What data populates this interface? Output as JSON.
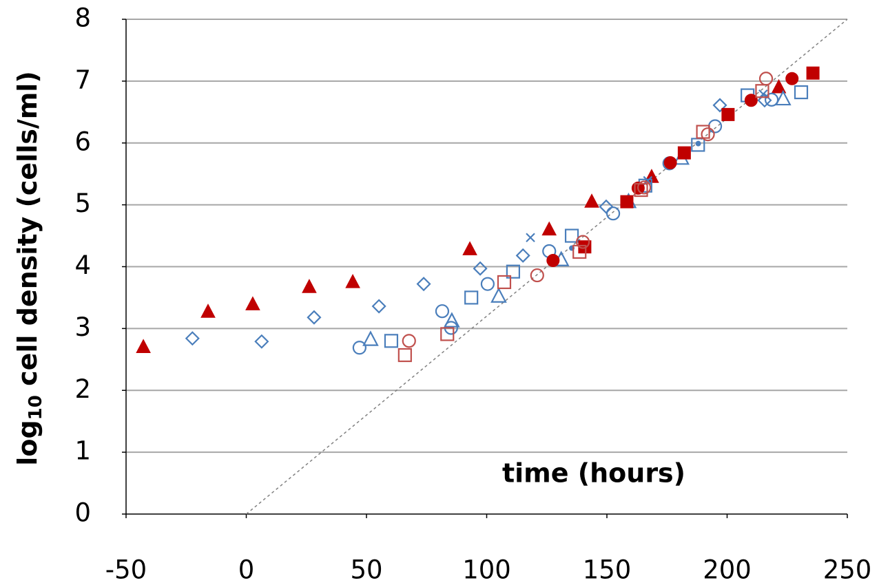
{
  "chart_data": {
    "type": "scatter",
    "x_label": "time (hours)",
    "y_label": [
      "log",
      "10",
      " cell density (cells/ml)"
    ],
    "xlim": [
      -50,
      250
    ],
    "xticks": [
      -50,
      0,
      50,
      100,
      150,
      200,
      250
    ],
    "ylim": [
      0,
      8
    ],
    "yticks": [
      0,
      1,
      2,
      3,
      4,
      5,
      6,
      7,
      8
    ],
    "grid": true,
    "reference_line": {
      "x": [
        0,
        250
      ],
      "values": [
        0,
        8
      ],
      "color": "#808080"
    },
    "series": [
      {
        "marker": "triangle",
        "filled": true,
        "color": "#c00000",
        "x": [
          -42.8,
          -15.9,
          2.7,
          26.2,
          44.3,
          93,
          126,
          143.7,
          168.6,
          221.5
        ],
        "values": [
          2.71,
          3.28,
          3.4,
          3.68,
          3.76,
          4.29,
          4.61,
          5.06,
          5.46,
          6.91
        ]
      },
      {
        "marker": "diamond",
        "filled": false,
        "color": "#4a7ebb",
        "x": [
          -22.4,
          6.4,
          28.2,
          55.2,
          73.8,
          97.3,
          115.1,
          149.7,
          197,
          215.6
        ],
        "values": [
          2.84,
          2.79,
          3.18,
          3.36,
          3.72,
          3.97,
          4.18,
          4.97,
          6.61,
          6.69
        ]
      },
      {
        "marker": "circle",
        "filled": false,
        "color": "#4a7ebb",
        "x": [
          47.1,
          81.5,
          85.2,
          100.4,
          126,
          152.6,
          176,
          195,
          218.5
        ],
        "values": [
          2.69,
          3.28,
          3.01,
          3.72,
          4.25,
          4.86,
          5.67,
          6.27,
          6.7
        ]
      },
      {
        "marker": "square",
        "filled": false,
        "color": "#4a7ebb",
        "x": [
          60.3,
          93.6,
          111,
          135.4,
          166,
          187.9,
          208.5,
          230.8
        ],
        "values": [
          2.8,
          3.5,
          3.92,
          4.5,
          5.31,
          5.97,
          6.77,
          6.82
        ]
      },
      {
        "marker": "triangle",
        "filled": false,
        "color": "#4a7ebb",
        "x": [
          51.7,
          85.5,
          105,
          131,
          159,
          181,
          223.3
        ],
        "values": [
          2.83,
          3.13,
          3.53,
          4.12,
          5.06,
          5.76,
          6.72
        ]
      },
      {
        "marker": "cross",
        "filled": false,
        "color": "#4a7ebb",
        "x": [
          118.2,
          167,
          215
        ],
        "values": [
          4.47,
          5.39,
          6.79
        ]
      },
      {
        "marker": "dot",
        "filled": true,
        "color": "#4a7ebb",
        "x": [
          135.4,
          188
        ],
        "values": [
          4.3,
          5.99
        ]
      },
      {
        "marker": "circle",
        "filled": true,
        "color": "#c00000",
        "x": [
          127.6,
          163,
          176.4,
          210,
          227
        ],
        "values": [
          4.1,
          5.27,
          5.68,
          6.69,
          7.04
        ]
      },
      {
        "marker": "square",
        "filled": true,
        "color": "#c00000",
        "x": [
          140.8,
          158.3,
          182.2,
          200.4,
          235.7
        ],
        "values": [
          4.32,
          5.05,
          5.84,
          6.46,
          7.13
        ]
      },
      {
        "marker": "square",
        "filled": false,
        "color": "#c0504d",
        "x": [
          66,
          83.6,
          107.3,
          138.6,
          164.2,
          190,
          214.6
        ],
        "values": [
          2.57,
          2.91,
          3.75,
          4.24,
          5.24,
          6.18,
          6.84
        ]
      },
      {
        "marker": "circle",
        "filled": false,
        "color": "#c0504d",
        "x": [
          67.7,
          121,
          140,
          165.5,
          192,
          216.2
        ],
        "values": [
          2.8,
          3.86,
          4.4,
          5.28,
          6.14,
          7.04
        ]
      }
    ]
  }
}
